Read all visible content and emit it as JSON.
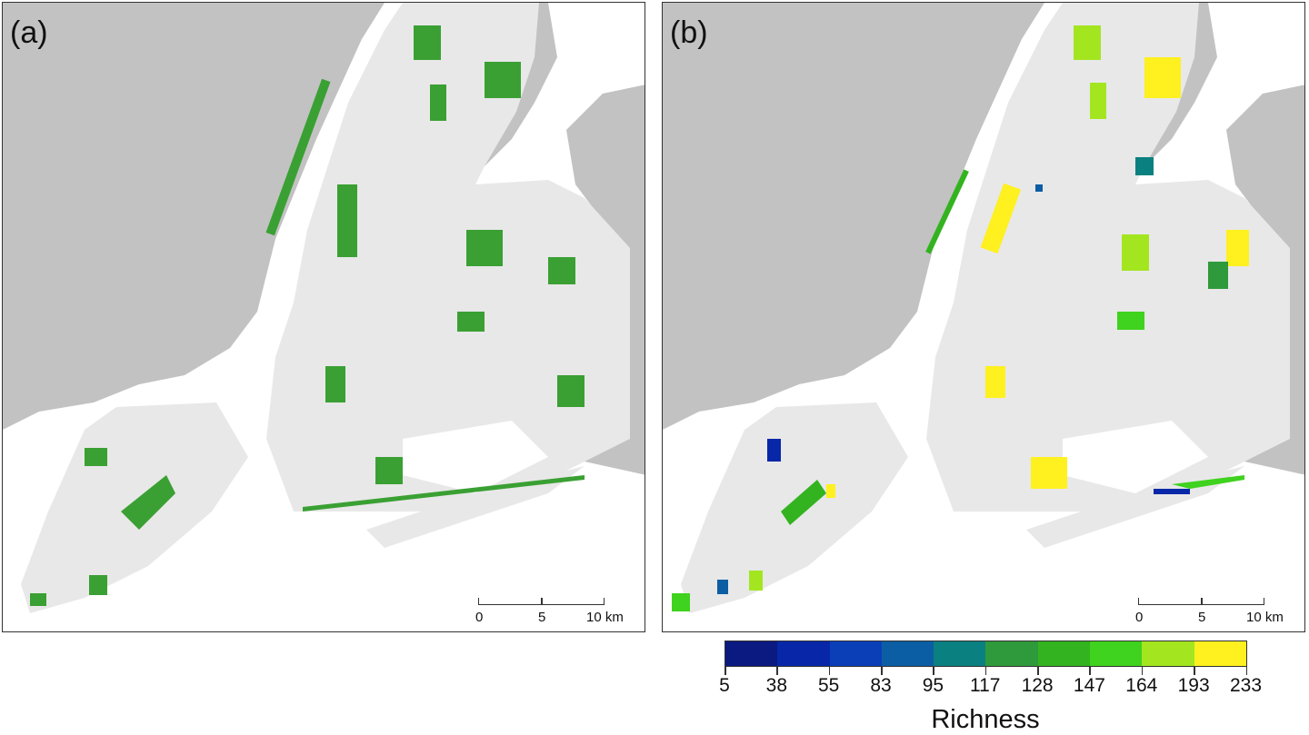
{
  "panels": [
    {
      "label": "(a)"
    },
    {
      "label": "(b)"
    }
  ],
  "scale_bar": {
    "labels": [
      "0",
      "5",
      "10 km"
    ]
  },
  "legend": {
    "title": "Richness",
    "ticks": [
      "5",
      "38",
      "55",
      "83",
      "95",
      "117",
      "128",
      "147",
      "164",
      "193",
      "233"
    ],
    "colors": [
      "#0a1a80",
      "#0727a8",
      "#0a3fb8",
      "#0b5ea3",
      "#0b8080",
      "#2e9a3b",
      "#33b31f",
      "#3fd21e",
      "#a3e620",
      "#fff01f"
    ]
  },
  "map_colors": {
    "land_other": "#c2c2c2",
    "nyc": "#e8e8e8",
    "water": "#ffffff",
    "green_space": "#3aa033"
  }
}
